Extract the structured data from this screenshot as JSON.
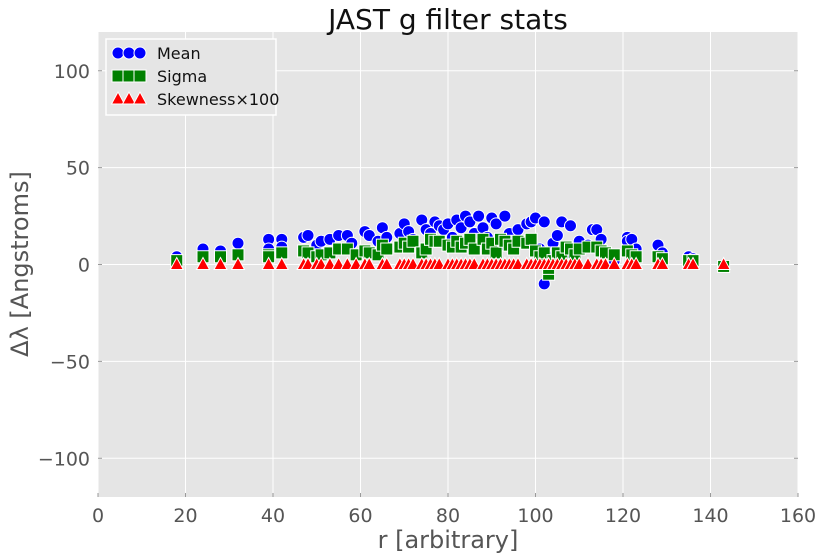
{
  "chart_data": {
    "type": "scatter",
    "title": "JAST g filter stats",
    "xlabel": "r [arbitrary]",
    "ylabel": "Δλ [Angstroms]",
    "xlim": [
      0,
      160
    ],
    "ylim": [
      -120,
      120
    ],
    "xticks": [
      0,
      20,
      40,
      60,
      80,
      100,
      120,
      140,
      160
    ],
    "yticks": [
      -100,
      -50,
      0,
      50,
      100
    ],
    "ytick_labels": [
      "−100",
      "−50",
      "0",
      "50",
      "100"
    ],
    "grid": true,
    "legend_position": "top-left",
    "series": [
      {
        "name": "Mean",
        "marker": "circle",
        "color": "#0000ff",
        "points": [
          [
            18,
            4
          ],
          [
            24,
            8
          ],
          [
            28,
            7
          ],
          [
            32,
            11
          ],
          [
            39,
            13
          ],
          [
            39,
            8
          ],
          [
            42,
            13
          ],
          [
            42,
            9
          ],
          [
            47,
            14
          ],
          [
            48,
            15
          ],
          [
            50,
            10
          ],
          [
            51,
            12
          ],
          [
            53,
            13
          ],
          [
            55,
            15
          ],
          [
            57,
            15
          ],
          [
            58,
            11
          ],
          [
            61,
            17
          ],
          [
            62,
            15
          ],
          [
            64,
            12
          ],
          [
            65,
            19
          ],
          [
            66,
            14
          ],
          [
            69,
            16
          ],
          [
            70,
            21
          ],
          [
            71,
            17
          ],
          [
            72,
            13
          ],
          [
            74,
            23
          ],
          [
            75,
            18
          ],
          [
            76,
            16
          ],
          [
            77,
            22
          ],
          [
            78,
            20
          ],
          [
            79,
            18
          ],
          [
            80,
            21
          ],
          [
            81,
            14
          ],
          [
            82,
            23
          ],
          [
            83,
            19
          ],
          [
            84,
            25
          ],
          [
            85,
            22
          ],
          [
            86,
            16
          ],
          [
            87,
            25
          ],
          [
            88,
            19
          ],
          [
            89,
            14
          ],
          [
            90,
            24
          ],
          [
            91,
            21
          ],
          [
            92,
            10
          ],
          [
            93,
            25
          ],
          [
            94,
            16
          ],
          [
            95,
            12
          ],
          [
            96,
            18
          ],
          [
            98,
            21
          ],
          [
            99,
            22
          ],
          [
            100,
            24
          ],
          [
            101,
            8
          ],
          [
            102,
            -10
          ],
          [
            102,
            22
          ],
          [
            103,
            4
          ],
          [
            104,
            11
          ],
          [
            105,
            15
          ],
          [
            106,
            22
          ],
          [
            107,
            6
          ],
          [
            108,
            20
          ],
          [
            109,
            8
          ],
          [
            110,
            12
          ],
          [
            112,
            10
          ],
          [
            113,
            18
          ],
          [
            114,
            18
          ],
          [
            115,
            13
          ],
          [
            118,
            2
          ],
          [
            121,
            14
          ],
          [
            121,
            12
          ],
          [
            122,
            13
          ],
          [
            123,
            8
          ],
          [
            128,
            10
          ],
          [
            129,
            6
          ],
          [
            135,
            4
          ],
          [
            136,
            3
          ]
        ]
      },
      {
        "name": "Sigma",
        "marker": "square",
        "color": "#008000",
        "points": [
          [
            18,
            2
          ],
          [
            24,
            4
          ],
          [
            28,
            4
          ],
          [
            32,
            5
          ],
          [
            39,
            5
          ],
          [
            39,
            4
          ],
          [
            42,
            6
          ],
          [
            47,
            7
          ],
          [
            48,
            6
          ],
          [
            50,
            4
          ],
          [
            51,
            5
          ],
          [
            53,
            6
          ],
          [
            55,
            8
          ],
          [
            57,
            8
          ],
          [
            59,
            5
          ],
          [
            61,
            7
          ],
          [
            62,
            6
          ],
          [
            64,
            5
          ],
          [
            65,
            10
          ],
          [
            66,
            8
          ],
          [
            69,
            9
          ],
          [
            70,
            11
          ],
          [
            71,
            9
          ],
          [
            72,
            12
          ],
          [
            74,
            6
          ],
          [
            75,
            8
          ],
          [
            76,
            13
          ],
          [
            77,
            12
          ],
          [
            78,
            12
          ],
          [
            80,
            10
          ],
          [
            81,
            9
          ],
          [
            82,
            12
          ],
          [
            83,
            9
          ],
          [
            84,
            11
          ],
          [
            85,
            13
          ],
          [
            86,
            8
          ],
          [
            88,
            13
          ],
          [
            89,
            8
          ],
          [
            90,
            11
          ],
          [
            91,
            6
          ],
          [
            92,
            13
          ],
          [
            93,
            12
          ],
          [
            94,
            10
          ],
          [
            95,
            8
          ],
          [
            96,
            12
          ],
          [
            98,
            11
          ],
          [
            99,
            13
          ],
          [
            100,
            7
          ],
          [
            101,
            4
          ],
          [
            102,
            6
          ],
          [
            103,
            -5
          ],
          [
            103,
            -2
          ],
          [
            104,
            2
          ],
          [
            105,
            6
          ],
          [
            106,
            4
          ],
          [
            107,
            9
          ],
          [
            108,
            8
          ],
          [
            109,
            5
          ],
          [
            110,
            8
          ],
          [
            112,
            9
          ],
          [
            114,
            9
          ],
          [
            115,
            7
          ],
          [
            116,
            6
          ],
          [
            118,
            5
          ],
          [
            121,
            7
          ],
          [
            122,
            5
          ],
          [
            123,
            4
          ],
          [
            128,
            4
          ],
          [
            129,
            3
          ],
          [
            135,
            2
          ],
          [
            136,
            2
          ],
          [
            143,
            -1
          ]
        ]
      },
      {
        "name": "Skewness×100",
        "marker": "triangle",
        "color": "#ff0000",
        "points": [
          [
            18,
            0
          ],
          [
            24,
            0
          ],
          [
            28,
            0
          ],
          [
            32,
            0
          ],
          [
            39,
            0
          ],
          [
            42,
            0
          ],
          [
            47,
            0
          ],
          [
            48,
            0
          ],
          [
            50,
            0
          ],
          [
            51,
            0
          ],
          [
            53,
            0
          ],
          [
            55,
            0
          ],
          [
            57,
            0
          ],
          [
            59,
            0
          ],
          [
            61,
            0
          ],
          [
            62,
            0
          ],
          [
            65,
            0
          ],
          [
            66,
            0
          ],
          [
            69,
            0
          ],
          [
            70,
            0
          ],
          [
            71,
            0
          ],
          [
            72,
            0
          ],
          [
            74,
            0
          ],
          [
            75,
            0
          ],
          [
            76,
            0
          ],
          [
            77,
            0
          ],
          [
            78,
            0
          ],
          [
            80,
            0
          ],
          [
            81,
            0
          ],
          [
            82,
            0
          ],
          [
            83,
            0
          ],
          [
            84,
            0
          ],
          [
            85,
            0
          ],
          [
            86,
            0
          ],
          [
            88,
            0
          ],
          [
            89,
            0
          ],
          [
            90,
            0
          ],
          [
            91,
            0
          ],
          [
            92,
            0
          ],
          [
            93,
            0
          ],
          [
            94,
            0
          ],
          [
            95,
            0
          ],
          [
            96,
            0
          ],
          [
            98,
            0
          ],
          [
            99,
            0
          ],
          [
            100,
            0
          ],
          [
            101,
            0
          ],
          [
            102,
            0
          ],
          [
            103,
            0
          ],
          [
            104,
            0
          ],
          [
            105,
            0
          ],
          [
            106,
            0
          ],
          [
            107,
            0
          ],
          [
            108,
            0
          ],
          [
            109,
            0
          ],
          [
            110,
            0
          ],
          [
            112,
            0
          ],
          [
            114,
            0
          ],
          [
            115,
            0
          ],
          [
            116,
            0
          ],
          [
            118,
            0
          ],
          [
            121,
            0
          ],
          [
            122,
            0
          ],
          [
            123,
            0
          ],
          [
            128,
            0
          ],
          [
            129,
            0
          ],
          [
            135,
            0
          ],
          [
            136,
            0
          ],
          [
            143,
            0
          ]
        ]
      }
    ]
  }
}
